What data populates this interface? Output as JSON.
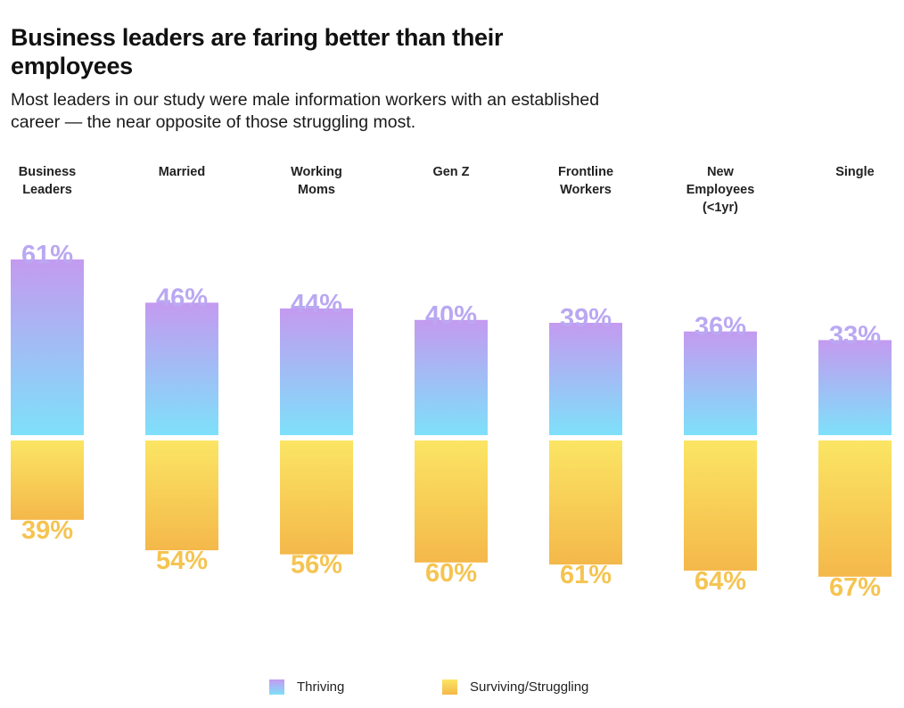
{
  "title": "Business leaders are faring better than their employees",
  "subtitle": "Most leaders in our study were male information workers with an established career — the near opposite of those struggling most.",
  "legend": {
    "thriving": "Thriving",
    "surviving": "Surviving/Struggling"
  },
  "colors": {
    "thriving_top": "#c49af0",
    "thriving_bottom": "#7ee0fa",
    "surviving_top": "#fbe564",
    "surviving_bottom": "#f4b84a",
    "thriving_label": "#b9a8f2",
    "surviving_label": "#f5c451"
  },
  "chart_data": {
    "type": "bar",
    "layout": "diverging-stacked",
    "categories": [
      "Business Leaders",
      "Married",
      "Working Moms",
      "Gen Z",
      "Frontline Workers",
      "New Employees (<1yr)",
      "Single"
    ],
    "category_label_lines": [
      [
        "Business",
        "Leaders"
      ],
      [
        "Married"
      ],
      [
        "Working",
        "Moms"
      ],
      [
        "Gen Z"
      ],
      [
        "Frontline",
        "Workers"
      ],
      [
        "New",
        "Employees",
        "(<1yr)"
      ],
      [
        "Single"
      ]
    ],
    "series": [
      {
        "name": "Thriving",
        "values": [
          61,
          46,
          44,
          40,
          39,
          36,
          33
        ],
        "labels": [
          "61%",
          "46%",
          "44%",
          "40%",
          "39%",
          "36%",
          "33%"
        ]
      },
      {
        "name": "Surviving/Struggling",
        "values": [
          39,
          54,
          56,
          60,
          61,
          64,
          67
        ],
        "labels": [
          "39%",
          "54%",
          "56%",
          "60%",
          "61%",
          "64%",
          "67%"
        ]
      }
    ],
    "unit": "%",
    "ylim": [
      0,
      100
    ],
    "grid": false,
    "legend_position": "bottom-center"
  }
}
